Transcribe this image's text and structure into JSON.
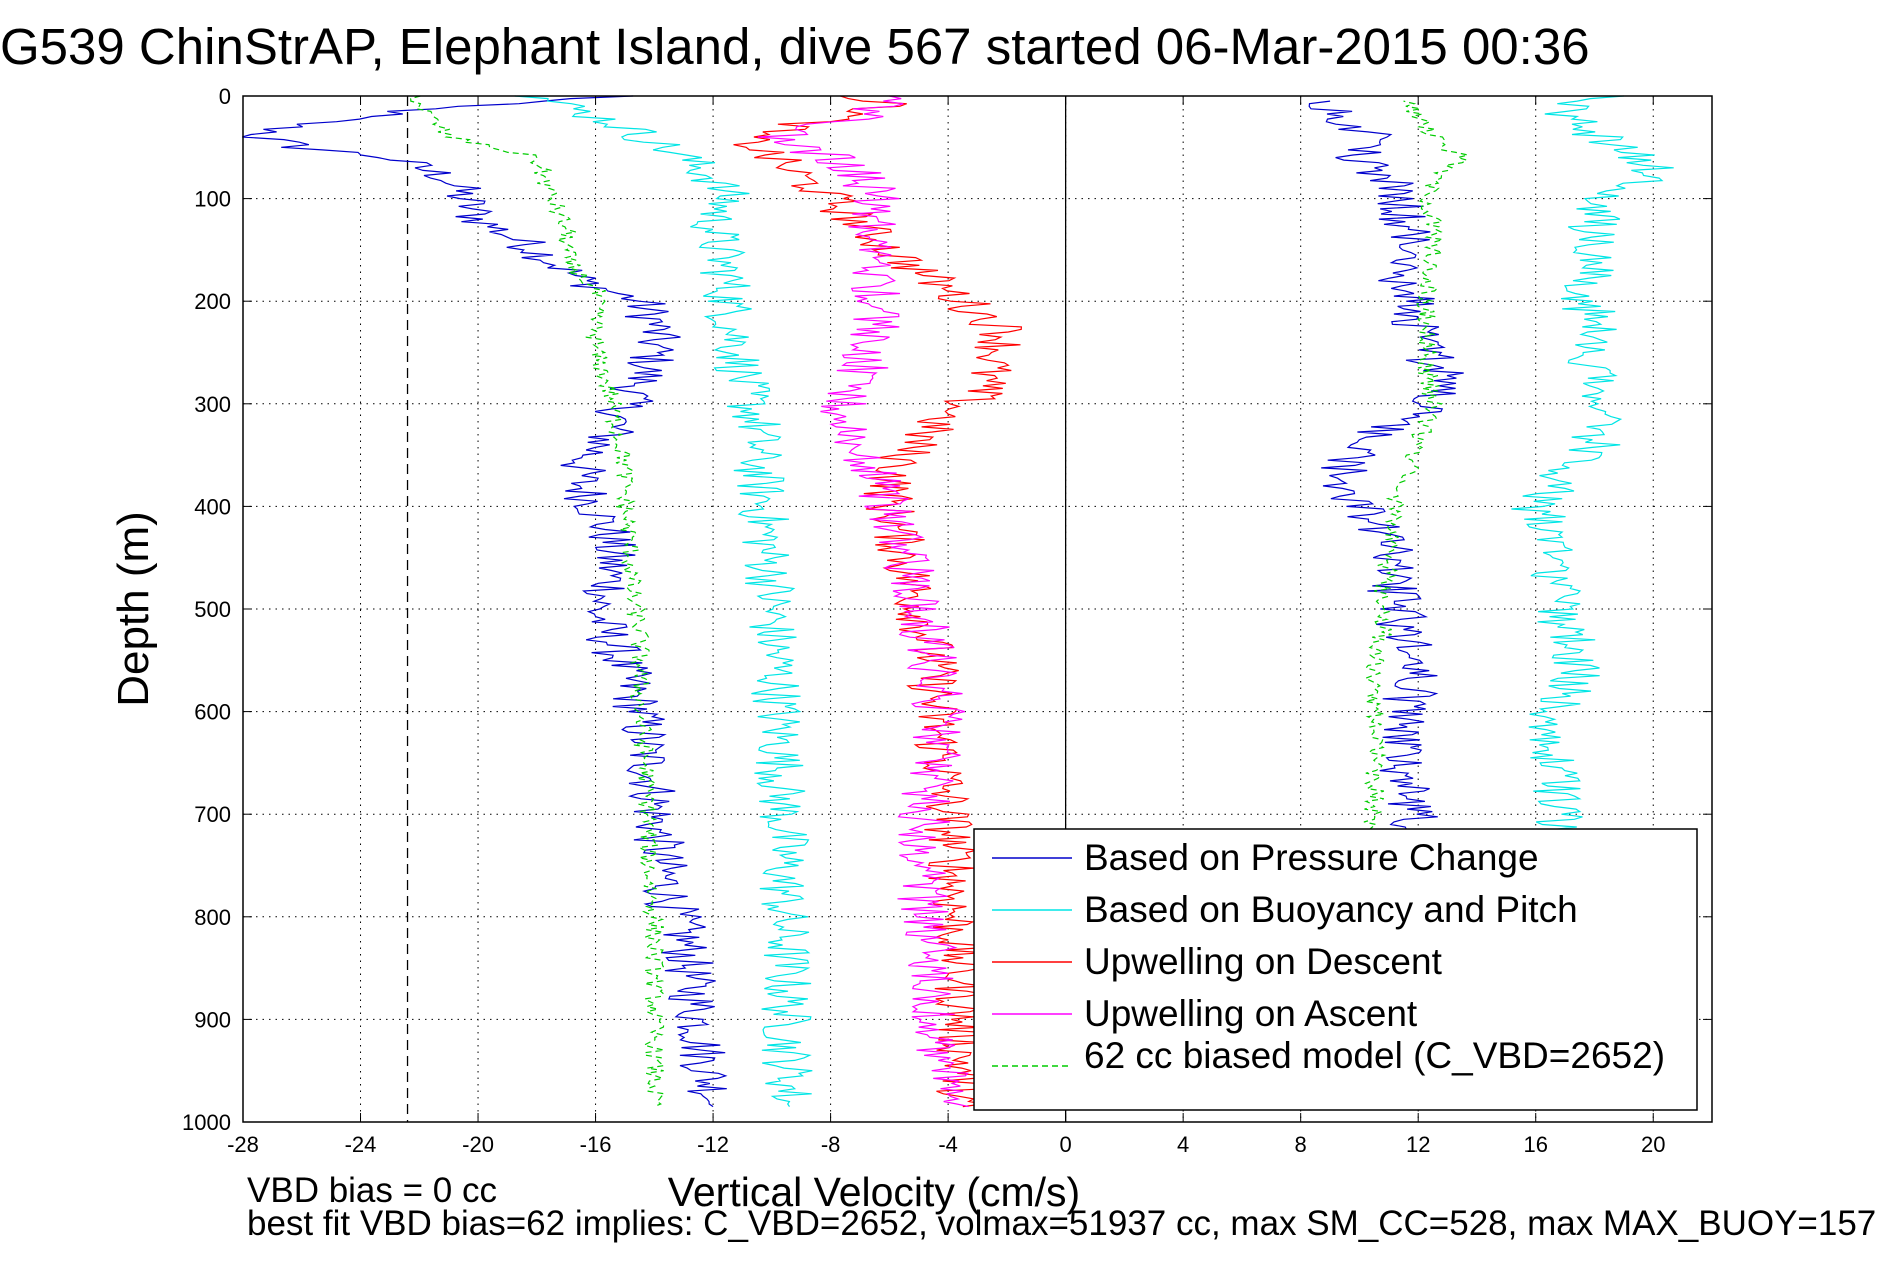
{
  "figure": {
    "title": "G539 ChinStrAP, Elephant Island, dive 567 started 06-Mar-2015 00:36",
    "footer_line1": "VBD bias = 0 cc",
    "footer_line2": "best fit VBD bias=62 implies: C_VBD=2652, volmax=51937 cc, max SM_CC=528, max MAX_BUOY=157"
  },
  "chart_data": {
    "type": "line",
    "title": "G539 ChinStrAP, Elephant Island, dive 567 started 06-Mar-2015 00:36",
    "xlabel": "Vertical Velocity (cm/s)",
    "ylabel": "Depth (m)",
    "xlim": [
      -28,
      22
    ],
    "ylim": [
      1000,
      0
    ],
    "y_reversed": true,
    "grid": true,
    "xticks": [
      -28,
      -24,
      -20,
      -16,
      -12,
      -8,
      -4,
      0,
      4,
      8,
      12,
      16,
      20
    ],
    "yticks": [
      0,
      100,
      200,
      300,
      400,
      500,
      600,
      700,
      800,
      900,
      1000
    ],
    "reference_lines": [
      {
        "x": -22.4,
        "style": "dashed",
        "color": "#000000"
      },
      {
        "x": 0,
        "style": "solid",
        "color": "#000000"
      }
    ],
    "legend_position": "bottom-right",
    "series": [
      {
        "name": "Based on Pressure Change",
        "color": "#0000cc",
        "style": "solid",
        "depth": [
          0,
          10,
          20,
          30,
          40,
          50,
          60,
          70,
          80,
          100,
          120,
          150,
          180,
          200,
          220,
          250,
          280,
          300,
          330,
          360,
          380,
          400,
          430,
          450,
          480,
          500,
          530,
          560,
          600,
          640,
          680,
          700,
          740,
          780,
          820,
          860,
          900,
          940,
          970,
          985
        ],
        "x": [
          -15,
          -21,
          -24,
          -26.5,
          -27.5,
          -26,
          -23,
          -22,
          -21,
          -20.5,
          -20,
          -18,
          -16.5,
          -14.5,
          -14,
          -14,
          -14.5,
          -15,
          -15.5,
          -16.5,
          -16.5,
          -16,
          -15.5,
          -15.5,
          -15.5,
          -16,
          -15.5,
          -15,
          -14.5,
          -14.3,
          -14,
          -14,
          -13.8,
          -13.5,
          -13,
          -12.8,
          -12.5,
          -12.3,
          -12,
          -12
        ]
      },
      {
        "name": "Based on Pressure Change",
        "color": "#0000cc",
        "style": "solid",
        "depth": [
          985,
          950,
          900,
          850,
          800,
          750,
          700,
          650,
          600,
          560,
          520,
          490,
          460,
          440,
          420,
          400,
          380,
          360,
          340,
          320,
          300,
          280,
          260,
          240,
          220,
          200,
          180,
          150,
          120,
          100,
          80,
          60,
          40,
          20,
          5
        ],
        "x": [
          12,
          12,
          12,
          12,
          12,
          12,
          11.8,
          11.5,
          11.5,
          12,
          11.5,
          11.2,
          11,
          11,
          10.5,
          10,
          9.5,
          9.5,
          10,
          11,
          12.5,
          13,
          12.5,
          12,
          12,
          12,
          11.5,
          11.8,
          11.5,
          11.5,
          11,
          10,
          10.5,
          9.5,
          9
        ]
      },
      {
        "name": "Based on Buoyancy and Pitch",
        "color": "#00e5e5",
        "style": "solid",
        "depth": [
          0,
          15,
          30,
          60,
          80,
          100,
          120,
          150,
          180,
          200,
          240,
          280,
          320,
          360,
          400,
          440,
          480,
          520,
          560,
          600,
          640,
          680,
          720,
          760,
          800,
          840,
          880,
          920,
          960,
          985
        ],
        "x": [
          -18,
          -16.5,
          -15,
          -13,
          -12,
          -11.5,
          -12,
          -11.8,
          -11.5,
          -11.5,
          -11.2,
          -11,
          -10.5,
          -10.5,
          -10.3,
          -10.2,
          -10,
          -10,
          -9.8,
          -9.8,
          -9.7,
          -9.7,
          -9.6,
          -9.6,
          -9.6,
          -9.5,
          -9.5,
          -9.5,
          -9.4,
          -9.4
        ]
      },
      {
        "name": "Based on Buoyancy and Pitch",
        "color": "#00e5e5",
        "style": "solid",
        "depth": [
          985,
          950,
          900,
          850,
          800,
          750,
          700,
          650,
          600,
          560,
          520,
          480,
          440,
          400,
          370,
          340,
          300,
          260,
          220,
          190,
          160,
          130,
          100,
          90,
          70,
          50,
          30,
          10,
          0
        ],
        "x": [
          17,
          17,
          17,
          17,
          17,
          17.2,
          16.8,
          16.5,
          16.5,
          17.5,
          17,
          16.8,
          16.5,
          16,
          17,
          18,
          18,
          18,
          18,
          17.5,
          18,
          18,
          18,
          19.5,
          20,
          19,
          17.5,
          17,
          19
        ]
      },
      {
        "name": "Upwelling on Descent",
        "color": "#ff0000",
        "style": "solid",
        "depth": [
          0,
          10,
          40,
          60,
          100,
          150,
          200,
          230,
          260,
          290,
          320,
          350,
          380,
          400,
          450,
          500,
          550,
          600,
          650,
          700,
          750,
          800,
          850,
          900,
          950,
          985
        ],
        "x": [
          -7,
          -6,
          -11,
          -10,
          -8,
          -6,
          -3.5,
          -2,
          -2.5,
          -3,
          -4.5,
          -5.5,
          -6,
          -6,
          -5.5,
          -5,
          -4.5,
          -4.5,
          -4.2,
          -4,
          -3.8,
          -3.8,
          -3.6,
          -3.6,
          -3.5,
          -3.5
        ]
      },
      {
        "name": "Upwelling on Ascent",
        "color": "#ff00ff",
        "style": "solid",
        "depth": [
          985,
          950,
          900,
          850,
          800,
          750,
          700,
          650,
          600,
          550,
          500,
          450,
          400,
          370,
          340,
          300,
          270,
          240,
          210,
          180,
          150,
          120,
          100,
          80,
          60,
          40,
          20,
          0
        ],
        "x": [
          -4,
          -4,
          -4.5,
          -4.5,
          -4.8,
          -5,
          -4.8,
          -4.5,
          -4.3,
          -4.5,
          -5,
          -5.5,
          -6,
          -6.5,
          -7.5,
          -7.5,
          -7,
          -6.5,
          -6.5,
          -6.5,
          -6.8,
          -6.5,
          -6.5,
          -6.8,
          -8,
          -10,
          -7,
          -6
        ]
      },
      {
        "name": "62 cc biased model (C_VBD=2652)",
        "color": "#00cc00",
        "style": "dashed",
        "depth": [
          0,
          10,
          40,
          60,
          100,
          130,
          160,
          190,
          220,
          250,
          290,
          320,
          360,
          400,
          440,
          480,
          520,
          560,
          600,
          650,
          700,
          750,
          800,
          850,
          900,
          950,
          985
        ],
        "x": [
          -22,
          -22,
          -21,
          -18,
          -17.5,
          -17,
          -17,
          -16,
          -16,
          -16,
          -15.5,
          -15.3,
          -15,
          -15,
          -14.8,
          -14.8,
          -14.5,
          -14.5,
          -14.5,
          -14.3,
          -14.2,
          -14.2,
          -14,
          -14,
          -14,
          -14,
          -14
        ]
      },
      {
        "name": "62 cc biased model (C_VBD=2652)",
        "color": "#00cc00",
        "style": "dashed",
        "depth": [
          985,
          950,
          900,
          850,
          800,
          750,
          700,
          650,
          600,
          560,
          520,
          490,
          450,
          420,
          400,
          380,
          340,
          300,
          260,
          220,
          180,
          150,
          120,
          100,
          80,
          60,
          40,
          20,
          5
        ],
        "x": [
          10.5,
          10.5,
          10.5,
          10.5,
          10.5,
          10.5,
          10.5,
          10.5,
          10.5,
          10.5,
          10.8,
          10.8,
          11,
          11,
          11.2,
          11.5,
          12,
          12.5,
          12.3,
          12.3,
          12.3,
          12.5,
          12.5,
          12.3,
          12.5,
          13.5,
          12.5,
          12,
          11.5
        ]
      }
    ]
  }
}
